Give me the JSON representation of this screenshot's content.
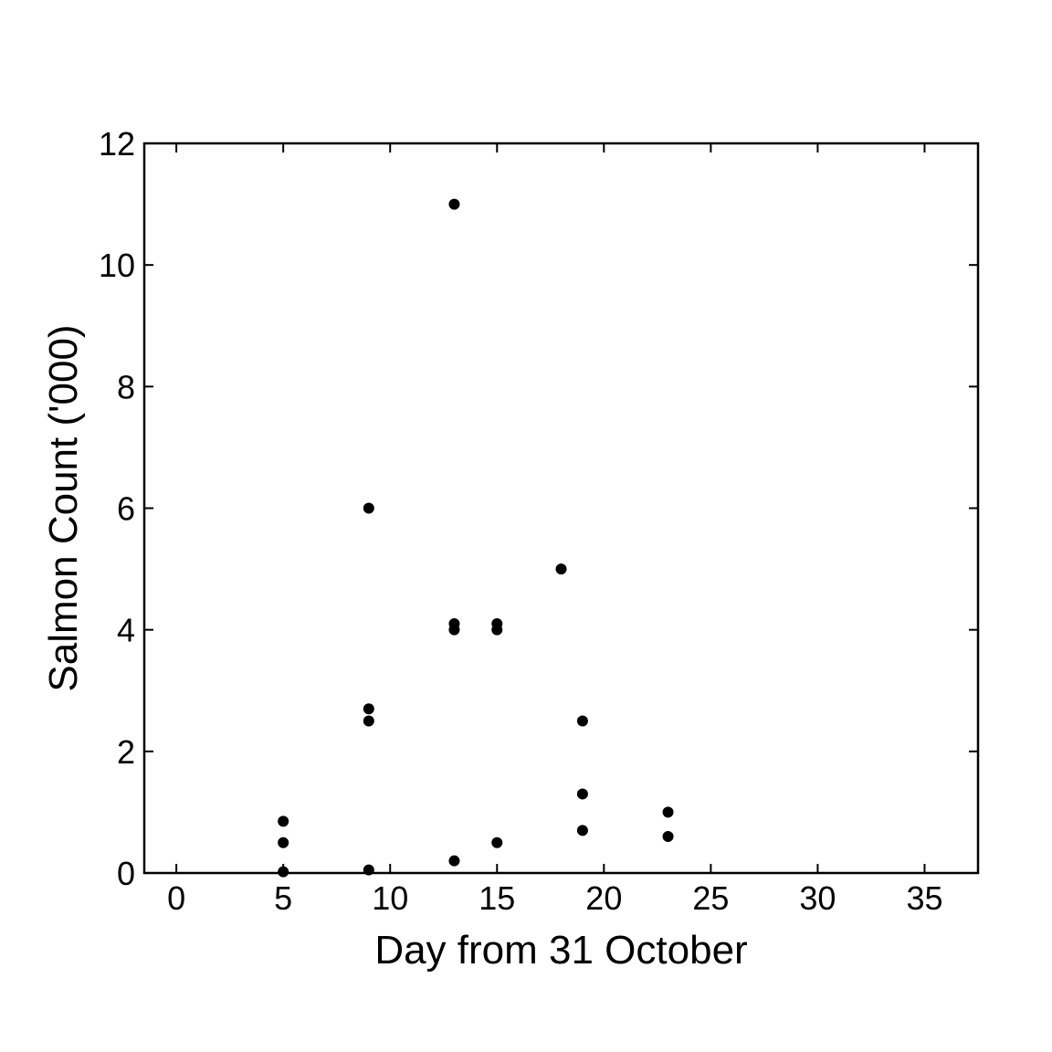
{
  "chart_data": {
    "type": "scatter",
    "title": "",
    "xlabel": "Day from 31 October",
    "ylabel": "Salmon Count ('000)",
    "xlim": [
      -1.5,
      37.5
    ],
    "ylim": [
      0,
      12
    ],
    "xticks": [
      0,
      5,
      10,
      15,
      20,
      25,
      30,
      35
    ],
    "yticks": [
      0,
      2,
      4,
      6,
      8,
      10,
      12
    ],
    "xtick_labels": [
      "0",
      "5",
      "10",
      "15",
      "20",
      "25",
      "30",
      "35"
    ],
    "ytick_labels": [
      "0",
      "2",
      "4",
      "6",
      "8",
      "10",
      "12"
    ],
    "grid": false,
    "marker_color": "#000000",
    "points": [
      {
        "x": 5,
        "y": 0.85
      },
      {
        "x": 5,
        "y": 0.5
      },
      {
        "x": 5,
        "y": 0.02
      },
      {
        "x": 9,
        "y": 6
      },
      {
        "x": 9,
        "y": 2.7
      },
      {
        "x": 9,
        "y": 2.5
      },
      {
        "x": 9,
        "y": 0.05
      },
      {
        "x": 13,
        "y": 11
      },
      {
        "x": 13,
        "y": 4.1
      },
      {
        "x": 13,
        "y": 4.0
      },
      {
        "x": 13,
        "y": 0.2
      },
      {
        "x": 15,
        "y": 4.1
      },
      {
        "x": 15,
        "y": 4.0
      },
      {
        "x": 15,
        "y": 0.5
      },
      {
        "x": 18,
        "y": 5
      },
      {
        "x": 19,
        "y": 2.5
      },
      {
        "x": 19,
        "y": 1.3
      },
      {
        "x": 19,
        "y": 0.7
      },
      {
        "x": 23,
        "y": 1.0
      },
      {
        "x": 23,
        "y": 0.6
      }
    ]
  }
}
